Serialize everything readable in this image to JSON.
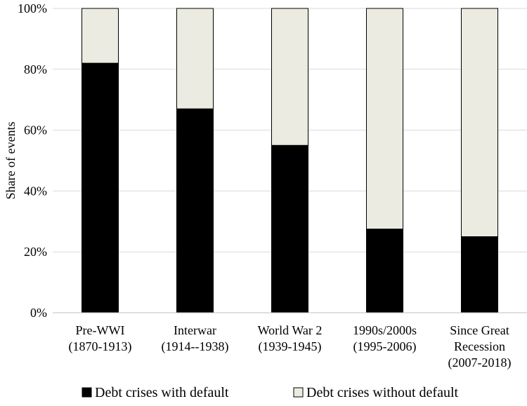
{
  "chart_data": {
    "type": "bar",
    "stacked": true,
    "categories": [
      [
        "Pre-WWI",
        "(1870-1913)"
      ],
      [
        "Interwar",
        "(1914--1938)"
      ],
      [
        "World War 2",
        "(1939-1945)"
      ],
      [
        "1990s/2000s",
        "(1995-2006)"
      ],
      [
        "Since Great",
        "Recession",
        "(2007-2018)"
      ]
    ],
    "series": [
      {
        "name": "Debt crises with default",
        "values": [
          82,
          67,
          55,
          27.5,
          25
        ],
        "color": "#000000"
      },
      {
        "name": "Debt crises without default",
        "values": [
          18,
          33,
          45,
          72.5,
          75
        ],
        "color": "#ecebe1"
      }
    ],
    "ylabel": "Share of events",
    "xlabel": "",
    "ylim": [
      0,
      100
    ],
    "yticks": [
      0,
      20,
      40,
      60,
      80,
      100
    ],
    "ytick_labels": [
      "0%",
      "20%",
      "40%",
      "60%",
      "80%",
      "100%"
    ],
    "grid": true,
    "legend_position": "bottom"
  }
}
